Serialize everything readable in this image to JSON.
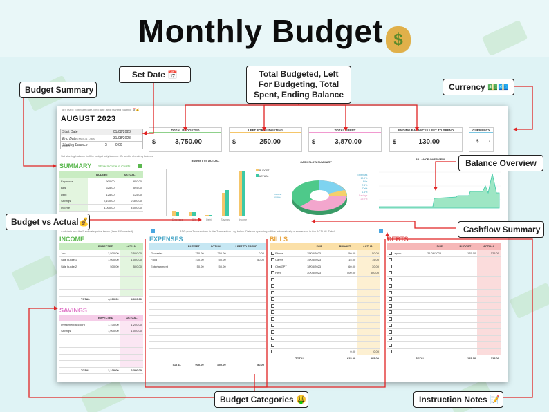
{
  "title": "Monthly Budget",
  "title_icon": "money-bag-icon",
  "callouts": {
    "set_date": "Set Date 📅",
    "totals": "Total Budgeted, Left For Budgeting, Total Spent, Ending Balance",
    "currency": "Currency 💵💶",
    "budget_summary": "Budget Summary",
    "balance_overview": "Balance Overview",
    "budget_vs_actual": "Budget vs Actual💰",
    "cashflow_summary": "Cashflow Summary",
    "budget_categories": "Budget Categories 🤑",
    "instruction_notes": "Instruction Notes 📝"
  },
  "sheet": {
    "top_note": "To START: Edit Start date, End date, and Starting balance 📅💰",
    "month": "AUGUST  2023",
    "start_date_label": "Start Date",
    "start_date": "01/08/2023",
    "end_date_label": "End Date",
    "end_date_hint": "(Max 31 Days Apart)",
    "end_date": "31/08/2023",
    "starting_balance_label": "Starting Balance",
    "starting_balance_cur": "$",
    "starting_balance": "0.00",
    "balance_note": "Set starting balance to 0 to budget only income. Or add in checking balance",
    "kpis": [
      {
        "label": "TOTAL BUDGETED",
        "cur": "$",
        "value": "3,750.00",
        "color": "#8fd18b"
      },
      {
        "label": "LEFT FOR BUDGETING",
        "cur": "$",
        "value": "250.00",
        "color": "#f5c66a"
      },
      {
        "label": "TOTAL SPENT",
        "cur": "$",
        "value": "3,870.00",
        "color": "#f19ad0"
      },
      {
        "label": "ENDING BALANCE / LEFT TO SPEND",
        "cur": "$",
        "value": "130.00",
        "color": "#cfcfcf"
      }
    ],
    "currency": {
      "label": "CURRENCY",
      "cur": "$",
      "value": "-"
    },
    "summary": {
      "title": "SUMMARY",
      "toggle_label": "Show Income in Charts",
      "headers": [
        "BUDGET",
        "ACTUAL"
      ],
      "rows": [
        {
          "name": "Expenses",
          "b": "900.00",
          "a": "850.00"
        },
        {
          "name": "Bills",
          "b": "625.00",
          "a": "595.00"
        },
        {
          "name": "Debt",
          "b": "125.00",
          "a": "125.00"
        },
        {
          "name": "Savings",
          "b": "2,100.00",
          "a": "2,300.00"
        },
        {
          "name": "Income",
          "b": "4,000.00",
          "a": "4,000.00"
        }
      ]
    },
    "bva_chart": {
      "title": "BUDGET VS ACTUAL",
      "legend": [
        "BUDGET",
        "ACTUAL"
      ]
    },
    "cashflow_chart": {
      "title": "CASH FLOW SUMMARY",
      "labels": [
        "Expenses",
        "Bills",
        "Debt",
        "Savings",
        "Income"
      ],
      "pcts": [
        "10.9%",
        "7.6%",
        "1.6%",
        "29.2%",
        "50.9%"
      ]
    },
    "balance_chart": {
      "title": "BALANCE OVERVIEW"
    },
    "categories_note": "Add data into the 5 subcategories below (Item & Expected).",
    "log_note": "ADD your Transactions in the Transaction Log below. Data on spending will be automatically summarized in the ACTUAL Tabs!",
    "income": {
      "title": "INCOME",
      "headers": [
        "EXPECTED",
        "ACTUAL"
      ],
      "rows": [
        {
          "name": "Job",
          "e": "2,500.00",
          "a": "2,500.00"
        },
        {
          "name": "Side hustle 1",
          "e": "1,000.00",
          "a": "1,000.00"
        },
        {
          "name": "Side hustle 2",
          "e": "500.00",
          "a": "500.00"
        }
      ],
      "total_label": "TOTAL",
      "total_e": "4,000.00",
      "total_a": "4,000.00"
    },
    "savings": {
      "title": "SAVINGS",
      "headers": [
        "EXPECTED",
        "ACTUAL"
      ],
      "rows": [
        {
          "name": "Investment account",
          "e": "1,100.00",
          "a": "1,250.00"
        },
        {
          "name": "Savings",
          "e": "1,000.00",
          "a": "1,050.00"
        }
      ],
      "total_label": "TOTAL",
      "total_e": "2,100.00",
      "total_a": "2,300.00"
    },
    "expenses": {
      "title": "EXPENSES",
      "headers": [
        "BUDGET",
        "ACTUAL",
        "LEFT TO SPEND"
      ],
      "rows": [
        {
          "name": "Groceries",
          "b": "750.00",
          "a": "750.00",
          "l": "0.00"
        },
        {
          "name": "Food",
          "b": "100.00",
          "a": "50.00",
          "l": "50.00"
        },
        {
          "name": "Entertainment",
          "b": "50.00",
          "a": "50.00",
          "l": ""
        }
      ],
      "total_label": "TOTAL",
      "total_b": "900.00",
      "total_a": "850.00",
      "total_l": "50.00"
    },
    "bills": {
      "title": "BILLS",
      "headers": [
        "DUE",
        "BUDGET",
        "ACTUAL"
      ],
      "rows": [
        {
          "name": "Phone",
          "d": "15/08/2023",
          "b": "50.00",
          "a": "50.00"
        },
        {
          "name": "Canva",
          "d": "15/08/2023",
          "b": "15.00",
          "a": "15.00"
        },
        {
          "name": "ChatGPT",
          "d": "18/08/2023",
          "b": "60.00",
          "a": "30.00"
        },
        {
          "name": "Rent",
          "d": "30/08/2023",
          "b": "500.00",
          "a": "500.00"
        }
      ],
      "zero_b": "0.00",
      "zero_a": "0.00",
      "total_label": "TOTAL",
      "total_b": "625.00",
      "total_a": "595.00"
    },
    "debts": {
      "title": "DEBTS",
      "headers": [
        "DUE",
        "BUDGET",
        "ACTUAL"
      ],
      "rows": [
        {
          "name": "Laptop",
          "d": "21/08/2023",
          "b": "125.00",
          "a": "125.00"
        }
      ],
      "total_label": "TOTAL",
      "total_b": "125.00",
      "total_a": "125.00"
    }
  }
}
